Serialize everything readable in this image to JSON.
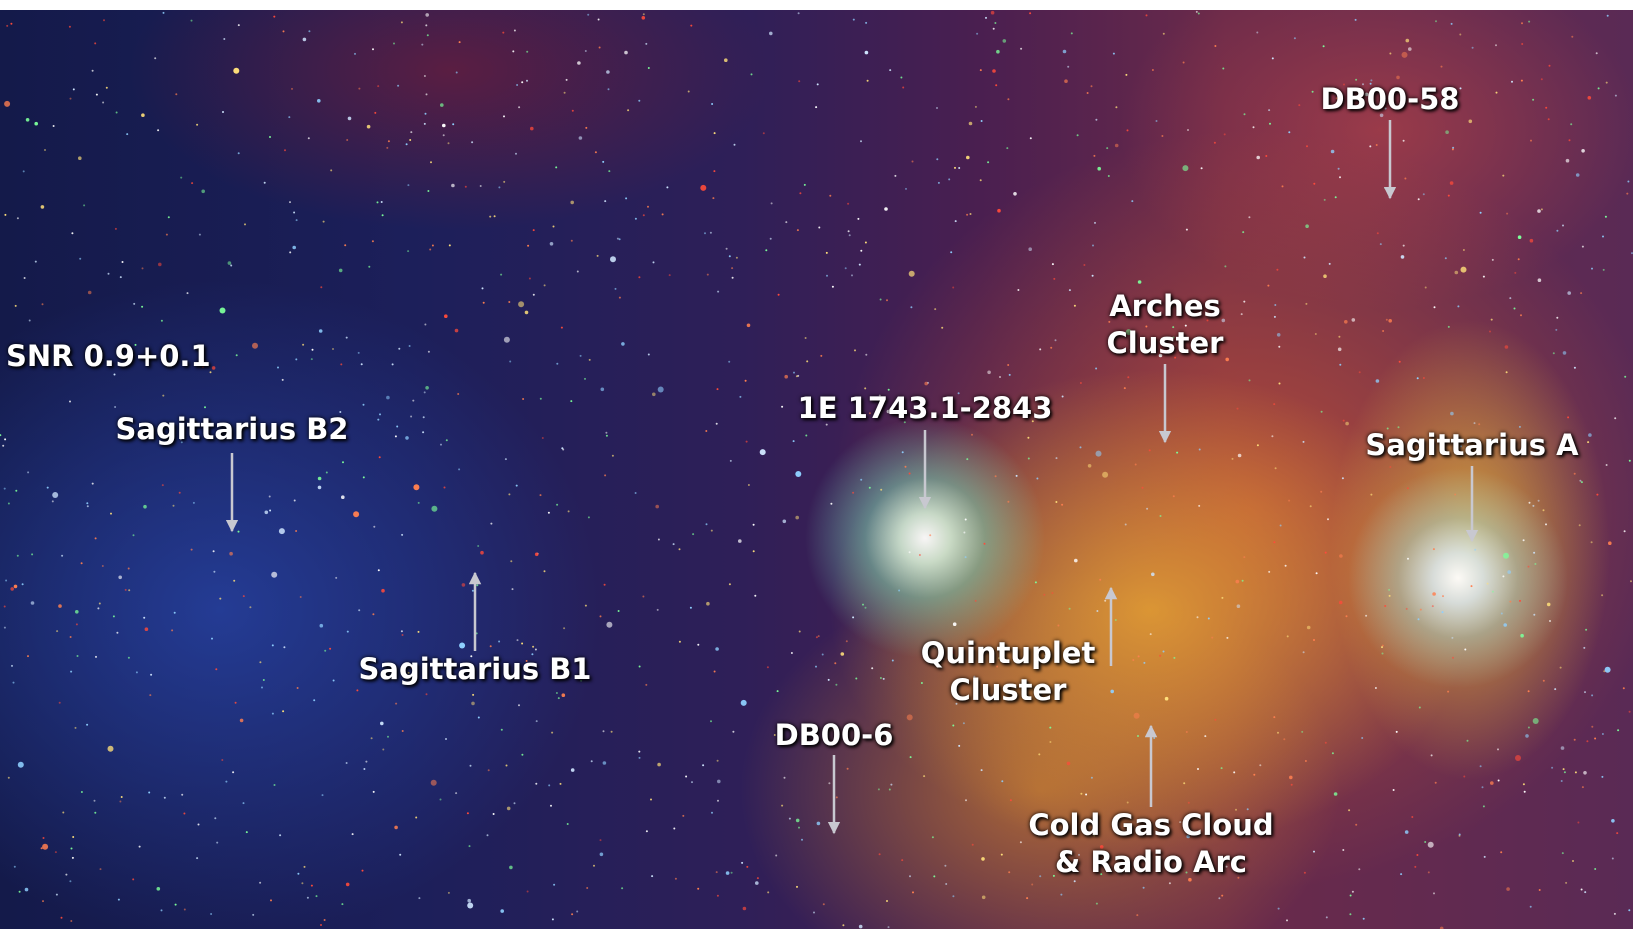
{
  "labels": [
    {
      "lines": [
        "DB00-58"
      ]
    },
    {
      "lines": [
        "SNR 0.9+0.1"
      ]
    },
    {
      "lines": [
        "Sagittarius B2"
      ]
    },
    {
      "lines": [
        "Sagittarius B1"
      ]
    },
    {
      "lines": [
        "1E 1743.1-2843"
      ]
    },
    {
      "lines": [
        "Arches",
        "Cluster"
      ]
    },
    {
      "lines": [
        "Sagittarius A"
      ]
    },
    {
      "lines": [
        "Quintuplet",
        "Cluster"
      ]
    },
    {
      "lines": [
        "DB00-6"
      ]
    },
    {
      "lines": [
        "Cold Gas Cloud",
        "& Radio Arc"
      ]
    }
  ]
}
